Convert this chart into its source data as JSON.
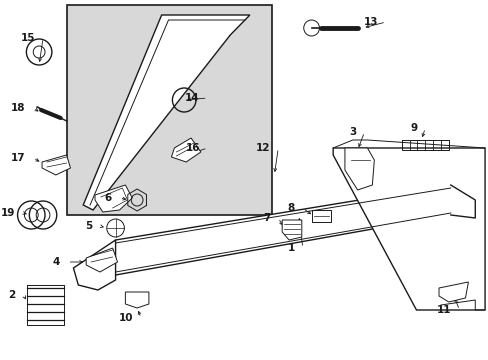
{
  "bg_color": "#ffffff",
  "line_color": "#1a1a1a",
  "inset_bg": "#d8d8d8",
  "fig_w": 4.89,
  "fig_h": 3.6,
  "dpi": 100
}
